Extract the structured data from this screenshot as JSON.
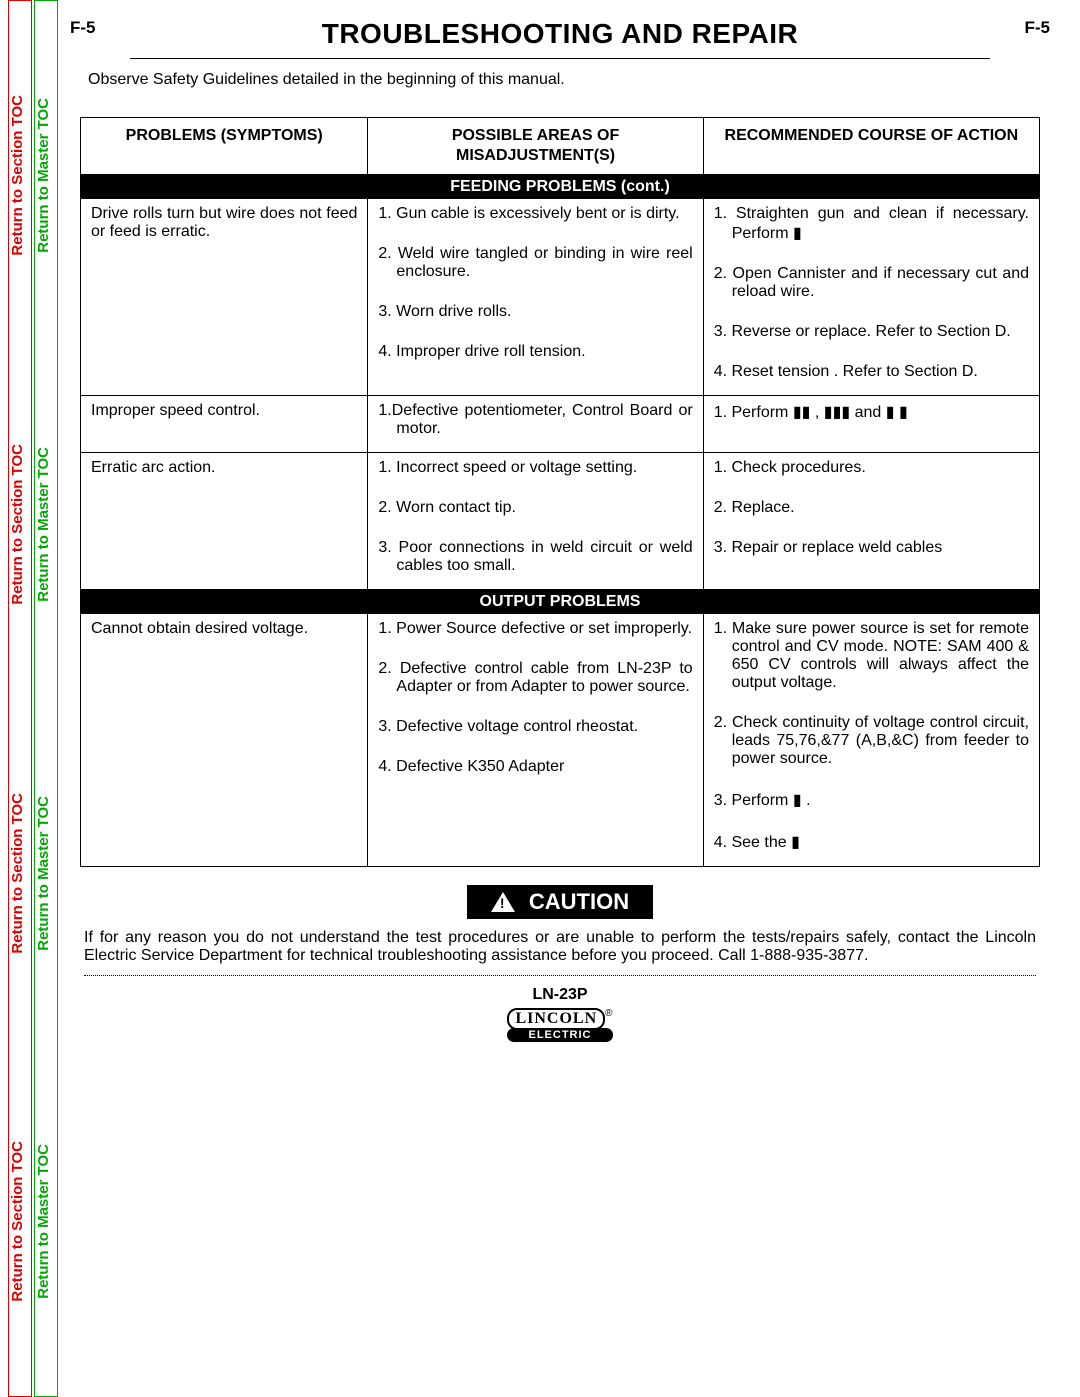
{
  "page_label": "F-5",
  "title": "TROUBLESHOOTING AND REPAIR",
  "side_tabs": {
    "red_label": "Return to Section TOC",
    "green_label": "Return to Master TOC"
  },
  "safety_note": "Observe Safety Guidelines detailed in the beginning of this manual.",
  "table": {
    "headers": {
      "problems": "PROBLEMS (SYMPTOMS)",
      "misadjust": "POSSIBLE AREAS OF MISADJUSTMENT(S)",
      "action": "RECOMMENDED COURSE OF ACTION"
    },
    "sections": [
      {
        "title": "FEEDING  PROBLEMS (cont.)",
        "rows": [
          {
            "problem": "Drive rolls turn but wire does not feed or feed is erratic.",
            "misadjust": [
              "1. Gun cable is excessively bent or is dirty.",
              "2. Weld wire tangled or binding in wire reel enclosure.",
              "3. Worn drive rolls.",
              "4. Improper drive roll tension."
            ],
            "action": [
              "1. Straighten gun and clean if necessary. Perform ▮",
              "2. Open Cannister and if necessary cut and reload wire.",
              "3. Reverse or replace. Refer to Section D.",
              "4. Reset tension . Refer to Section D."
            ]
          },
          {
            "problem": "Improper speed control.",
            "misadjust": [
              "1.Defective potentiometer, Control Board or motor."
            ],
            "action": [
              "1. Perform ▮▮ , ▮▮▮ and ▮ ▮"
            ]
          },
          {
            "problem": "Erratic arc action.",
            "misadjust": [
              "1. Incorrect speed or voltage setting.",
              "2. Worn contact tip.",
              "3. Poor connections in weld circuit or  weld cables too small."
            ],
            "action": [
              "1. Check procedures.",
              "2. Replace.",
              "3. Repair or replace weld cables"
            ]
          }
        ]
      },
      {
        "title": "OUTPUT PROBLEMS",
        "rows": [
          {
            "problem": "Cannot obtain desired voltage.",
            "misadjust": [
              "1. Power Source defective or set improperly.",
              "2. Defective control cable from LN-23P to Adapter or from Adapter to power source.",
              "3. Defective voltage control rheostat.",
              "4. Defective K350 Adapter"
            ],
            "action": [
              "1. Make sure power source is set for remote control and CV mode. NOTE: SAM 400 & 650 CV controls will always affect the output voltage.",
              "2. Check continuity of voltage control circuit, leads 75,76,&77 (A,B,&C) from feeder to power source.",
              "3. Perform ▮ .",
              "4. See the ▮"
            ]
          }
        ]
      }
    ]
  },
  "caution_label": "CAUTION",
  "caution_text": "If for any reason you do not understand the test procedures or are unable to perform the tests/repairs safely, contact the Lincoln Electric Service Department for technical troubleshooting assistance before you proceed. Call 1-888-935-3877.",
  "footer": {
    "model": "LN-23P",
    "brand_top": "LINCOLN",
    "brand_bottom": "ELECTRIC"
  }
}
